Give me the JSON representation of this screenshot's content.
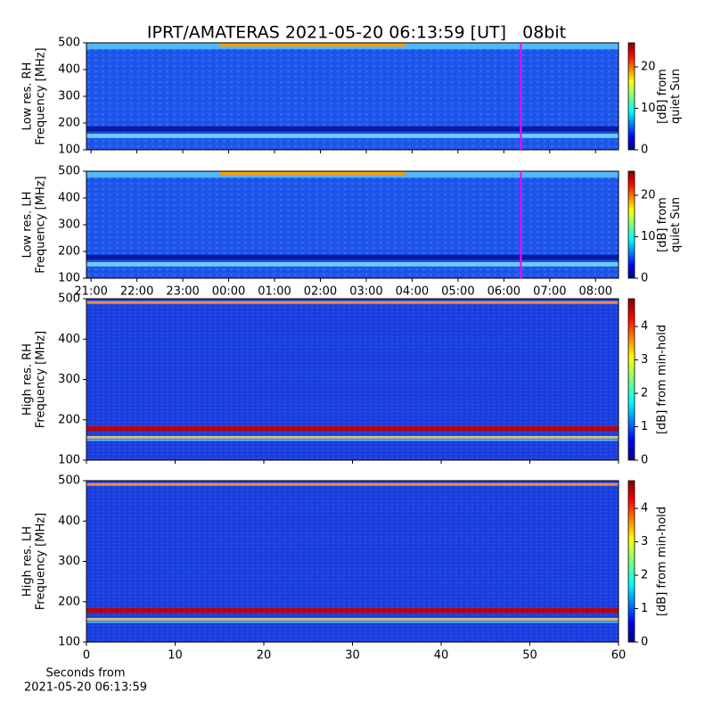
{
  "chart_data": [
    {
      "type": "heatmap",
      "title": "IPRT/AMATERAS 2021-05-20 06:13:59 [UT]   08bit",
      "ylabel": [
        "Low res. RH",
        "Frequency [MHz]"
      ],
      "ylim": [
        100,
        500
      ],
      "yticks": [
        100,
        200,
        300,
        400,
        500
      ],
      "xlim": [
        20.9,
        32.5
      ],
      "xticks": [
        21,
        22,
        23,
        24,
        25,
        26,
        27,
        28,
        29,
        30,
        31,
        32
      ],
      "marker_x": 30.37,
      "marker_color": "#ff00ff",
      "colorbar": {
        "label": [
          "[dB] from",
          "quiet Sun"
        ],
        "clim": [
          0,
          25.8
        ],
        "cticks": [
          0,
          10,
          20
        ]
      }
    },
    {
      "type": "heatmap",
      "ylabel": [
        "Low res. LH",
        "Frequency [MHz]"
      ],
      "ylim": [
        100,
        500
      ],
      "yticks": [
        100,
        200,
        300,
        400,
        500
      ],
      "xlim": [
        20.9,
        32.5
      ],
      "xticks": [
        {
          "value": 21,
          "label": "21:00"
        },
        {
          "value": 22,
          "label": "22:00"
        },
        {
          "value": 23,
          "label": "23:00"
        },
        {
          "value": 24,
          "label": "00:00"
        },
        {
          "value": 25,
          "label": "01:00"
        },
        {
          "value": 26,
          "label": "02:00"
        },
        {
          "value": 27,
          "label": "03:00"
        },
        {
          "value": 28,
          "label": "04:00"
        },
        {
          "value": 29,
          "label": "05:00"
        },
        {
          "value": 30,
          "label": "06:00"
        },
        {
          "value": 31,
          "label": "07:00"
        },
        {
          "value": 32,
          "label": "08:00"
        }
      ],
      "marker_x": 30.37,
      "marker_color": "#ff00ff",
      "colorbar": {
        "label": [
          "[dB] from",
          "quiet Sun"
        ],
        "clim": [
          0,
          25.8
        ],
        "cticks": [
          0,
          10,
          20
        ]
      }
    },
    {
      "type": "heatmap",
      "ylabel": [
        "High res. RH",
        "Frequency [MHz]"
      ],
      "ylim": [
        100,
        500
      ],
      "yticks": [
        100,
        200,
        300,
        400,
        500
      ],
      "xlim": [
        0,
        60
      ],
      "xticks": [
        0,
        10,
        20,
        30,
        40,
        50,
        60
      ],
      "colorbar": {
        "label": [
          "[dB] from min-hold"
        ],
        "clim": [
          0,
          4.83
        ],
        "cticks": [
          0,
          1,
          2,
          3,
          4
        ]
      }
    },
    {
      "type": "heatmap",
      "ylabel": [
        "High res. LH",
        "Frequency [MHz]"
      ],
      "ylim": [
        100,
        500
      ],
      "yticks": [
        100,
        200,
        300,
        400,
        500
      ],
      "xlim": [
        0,
        60
      ],
      "xticks": [
        0,
        10,
        20,
        30,
        40,
        50,
        60
      ],
      "xtick_labels": true,
      "xlabel": [
        "Seconds from",
        "2021-05-20 06:13:59"
      ],
      "colorbar": {
        "label": [
          "[dB] from min-hold"
        ],
        "clim": [
          0,
          4.83
        ],
        "cticks": [
          0,
          1,
          2,
          3,
          4
        ]
      }
    }
  ]
}
